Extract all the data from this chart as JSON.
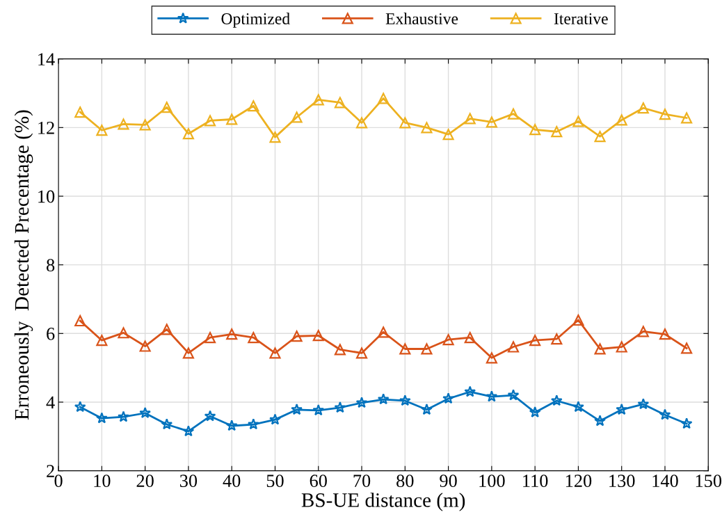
{
  "chart_data": {
    "type": "line",
    "xlabel": "BS-UE distance (m)",
    "ylabel": "Erroneously  Detected Precentage (%)",
    "x": [
      5,
      10,
      15,
      20,
      25,
      30,
      35,
      40,
      45,
      50,
      55,
      60,
      65,
      70,
      75,
      80,
      85,
      90,
      95,
      100,
      105,
      110,
      115,
      120,
      125,
      130,
      135,
      140,
      145
    ],
    "series": [
      {
        "name": "Optimized",
        "color": "#0072bd",
        "marker": "star",
        "values": [
          3.86,
          3.53,
          3.57,
          3.68,
          3.35,
          3.15,
          3.59,
          3.31,
          3.35,
          3.49,
          3.78,
          3.76,
          3.84,
          3.98,
          4.08,
          4.04,
          3.78,
          4.1,
          4.3,
          4.16,
          4.2,
          3.7,
          4.04,
          3.86,
          3.45,
          3.78,
          3.94,
          3.63,
          3.37
        ]
      },
      {
        "name": "Exhaustive",
        "color": "#d95319",
        "marker": "triangle",
        "values": [
          6.37,
          5.8,
          6.02,
          5.63,
          6.12,
          5.43,
          5.88,
          5.98,
          5.88,
          5.43,
          5.92,
          5.94,
          5.53,
          5.43,
          6.04,
          5.55,
          5.55,
          5.82,
          5.88,
          5.29,
          5.61,
          5.8,
          5.84,
          6.39,
          5.55,
          5.61,
          6.06,
          5.98,
          5.57
        ]
      },
      {
        "name": "Iterative",
        "color": "#edb120",
        "marker": "triangle",
        "values": [
          12.45,
          11.92,
          12.1,
          12.08,
          12.59,
          11.82,
          12.2,
          12.24,
          12.63,
          11.72,
          12.3,
          12.81,
          12.73,
          12.14,
          12.85,
          12.14,
          12.0,
          11.8,
          12.26,
          12.16,
          12.4,
          11.94,
          11.88,
          12.18,
          11.74,
          12.22,
          12.57,
          12.39,
          12.28
        ]
      }
    ],
    "xlim": [
      0,
      150
    ],
    "xticks": [
      0,
      10,
      20,
      30,
      40,
      50,
      60,
      70,
      80,
      90,
      100,
      110,
      120,
      130,
      140,
      150
    ],
    "ylim": [
      2,
      14
    ],
    "yticks": [
      2,
      4,
      6,
      8,
      10,
      12,
      14
    ],
    "grid": true,
    "legend": "top",
    "line_style": "solid"
  }
}
